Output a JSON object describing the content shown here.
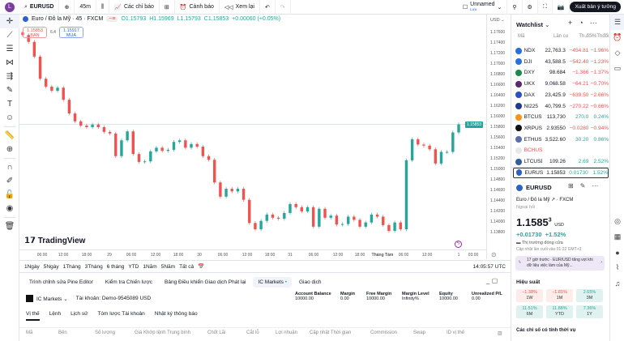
{
  "topbar": {
    "avatar": "L",
    "symbol": "EURUSD",
    "interval": "45m",
    "indicators": "Các chỉ báo",
    "alerts": "Cảnh báo",
    "replay": "Xem lại",
    "layout_name": "Unnamed",
    "layout_sub": "Lưu",
    "publish": "Xuất bản ý tưởng"
  },
  "legend": {
    "title": "Euro / Đô la Mỹ · 45 · FXCM",
    "o": "O1.15793",
    "h": "H1.15969",
    "l": "L1.15793",
    "c": "C1.15853",
    "chg": "+0.00060 (+0.05%)"
  },
  "trade": {
    "sell_price": "1.15853",
    "sell_label": "BÁN",
    "spread": "6.4",
    "buy_price": "1.15917",
    "buy_label": "MUA"
  },
  "price_axis": {
    "currency": "USD",
    "ticks": [
      "1.17600",
      "1.17400",
      "1.17200",
      "1.17000",
      "1.16800",
      "1.16600",
      "1.16400",
      "1.16200",
      "1.16000",
      "1.15800",
      "1.15600",
      "1.15400",
      "1.15200",
      "1.15000",
      "1.14800",
      "1.14600",
      "1.14400",
      "1.14200",
      "1.14000",
      "1.13800"
    ],
    "last": "1.15853"
  },
  "time_axis": [
    "06:00",
    "12:00",
    "18:00",
    "29",
    "06:00",
    "12:00",
    "18:00",
    "30",
    "06:00",
    "12:00",
    "18:00",
    "31",
    "06:00",
    "12:00",
    "18:00",
    "Tháng Tám",
    "06:00",
    "12:00",
    "1",
    "03:00"
  ],
  "brand": "TradingView",
  "colors": {
    "up": "#26a69a",
    "down": "#ef5350",
    "accent": "#2962ff"
  },
  "chart_data": {
    "type": "candlestick",
    "closes": [
      1.1755,
      1.1742,
      1.1714,
      1.1672,
      1.1657,
      1.1649,
      1.1655,
      1.1632,
      1.1606,
      1.1591,
      1.1583,
      1.158,
      1.1585,
      1.158,
      1.1571,
      1.1568,
      1.1525,
      1.1555,
      1.1572,
      1.1529,
      1.1514,
      1.1515,
      1.1534,
      1.1541,
      1.1535,
      1.1537,
      1.1552,
      1.1555,
      1.1541,
      1.1548,
      1.1543,
      1.1525,
      1.1518,
      1.1475,
      1.1448,
      1.1463,
      1.1458,
      1.1463,
      1.1442,
      1.1398,
      1.1386,
      1.1402,
      1.1414,
      1.1408,
      1.1406,
      1.1417,
      1.1434,
      1.1428,
      1.142,
      1.1428,
      1.1391,
      1.1425,
      1.1408,
      1.1412,
      1.1395,
      1.1396,
      1.141,
      1.1404,
      1.1391,
      1.1399,
      1.1414,
      1.141,
      1.1394,
      1.1383,
      1.1399,
      1.1386,
      1.1517,
      1.1557,
      1.1547,
      1.1545,
      1.1538,
      1.1511,
      1.1533,
      1.1533,
      1.157,
      1.15853
    ],
    "ylim": [
      1.138,
      1.176
    ]
  },
  "range_bar": {
    "items": [
      "1Ngày",
      "5Ngày",
      "1Tháng",
      "3Tháng",
      "6 tháng",
      "YTD",
      "1Năm",
      "5Năm",
      "Tất cả"
    ],
    "clock": "14:05:57 UTC"
  },
  "panel": {
    "tabs": [
      "Trình chỉnh sửa Pine Editor",
      "Kiểm tra Chiến lược",
      "Bảng Điều khiển Giao dịch Phát lại",
      "IC Markets",
      "Giao dịch"
    ],
    "broker": "IC Markets",
    "account": "Tài khoản: Demo-9545089 USD",
    "metrics": [
      {
        "k": "Account Balance",
        "v": "10000.00"
      },
      {
        "k": "Margin",
        "v": "0.00"
      },
      {
        "k": "Free Margin",
        "v": "10000.00"
      },
      {
        "k": "Margin Level",
        "v": "Infinity%"
      },
      {
        "k": "Equity",
        "v": "10000.00"
      },
      {
        "k": "Unrealized P/L",
        "v": "0.00"
      }
    ],
    "subtabs": [
      "Vị thế",
      "Lệnh",
      "Lịch sử",
      "Tóm lược Tài khoản",
      "Nhật ký thông báo"
    ],
    "columns": [
      "Mã",
      "Bên",
      "Số lượng",
      "Giá Khớp lệnh Trung bình",
      "Chốt Lãi",
      "Cắt lỗ",
      "Lợi nhuận",
      "Cập nhật Thời gian",
      "Commission",
      "Swap",
      "ID vị thế"
    ]
  },
  "watchlist": {
    "title": "Watchlist",
    "headers": [
      "Mã",
      "Lần cu",
      "Th.đổi",
      "%Thđổi"
    ],
    "rows": [
      {
        "s": "NDX",
        "l": "22,763.3",
        "c": "−454.81",
        "p": "−1.96%",
        "dir": "dn",
        "color": "#2a6fdb"
      },
      {
        "s": "DJI",
        "l": "43,588.5",
        "c": "−542.40",
        "p": "−1.23%",
        "dir": "dn",
        "color": "#2a6fdb"
      },
      {
        "s": "DXY",
        "l": "98.684",
        "c": "−1.366",
        "p": "−1.37%",
        "dir": "dn",
        "color": "#1b8a4c"
      },
      {
        "s": "UKX",
        "l": "9,068.58",
        "c": "−64.21",
        "p": "−0.70%",
        "dir": "dn",
        "color": "#5a2a6e"
      },
      {
        "s": "DAX",
        "l": "23,425.9",
        "c": "−639.50",
        "p": "−2.66%",
        "dir": "dn",
        "color": "#2a4fbf"
      },
      {
        "s": "NI225",
        "l": "40,799.5",
        "c": "−270.22",
        "p": "−0.66%",
        "dir": "dn",
        "color": "#223a8a"
      },
      {
        "s": "BTCUSD",
        "l": "113,730",
        "c": "270.0",
        "p": "0.24%",
        "dir": "up",
        "color": "#f7931a"
      },
      {
        "s": "XRPUSD",
        "l": "2.93550",
        "c": "−0.0280",
        "p": "−0.94%",
        "dir": "dn",
        "color": "#111"
      },
      {
        "s": "ETHUSD",
        "l": "3,522.60",
        "c": "30.20",
        "p": "0.86%",
        "dir": "up",
        "color": "#5a6ea8"
      },
      {
        "s": "BCHUSD",
        "l": "",
        "c": "",
        "p": "",
        "dir": "dn",
        "color": "#e8e8e8"
      },
      {
        "s": "LTCUSD",
        "l": "109.26",
        "c": "2.69",
        "p": "2.52%",
        "dir": "up",
        "color": "#345d9d"
      },
      {
        "s": "EURUSD",
        "l": "1.15853",
        "c": "0.01730",
        "p": "1.52%",
        "dir": "up",
        "color": "#2a62c9"
      }
    ]
  },
  "detail": {
    "symbol": "EURUSD",
    "desc": "Euro / Đô la Mỹ",
    "exchange": "FXCM",
    "type": "Ngoại hối",
    "price": "1.1585",
    "price_sup": "3",
    "currency": "USD",
    "change": "+0.01730",
    "change_pct": "+1.52%",
    "status": "Thị trường đóng cửa",
    "updated": "Cập nhật lần cuối vào 01:22 GMT+3",
    "news": "17 giờ trước · EUR/USD tăng vọt khi dữ liệu việc làm của Mỹ...",
    "perf_title": "Hiệu suất",
    "perf": [
      {
        "v": "−1.38%",
        "k": "1W",
        "dir": "dn"
      },
      {
        "v": "−1.81%",
        "k": "1M",
        "dir": "dn"
      },
      {
        "v": "2.65%",
        "k": "3M",
        "dir": "up"
      },
      {
        "v": "11.51%",
        "k": "6M",
        "dir": "up"
      },
      {
        "v": "11.88%",
        "k": "YTD",
        "dir": "up"
      },
      {
        "v": "7.36%",
        "k": "1Y",
        "dir": "up"
      }
    ],
    "seasonal": "Các chỉ số có tính thời vụ"
  }
}
